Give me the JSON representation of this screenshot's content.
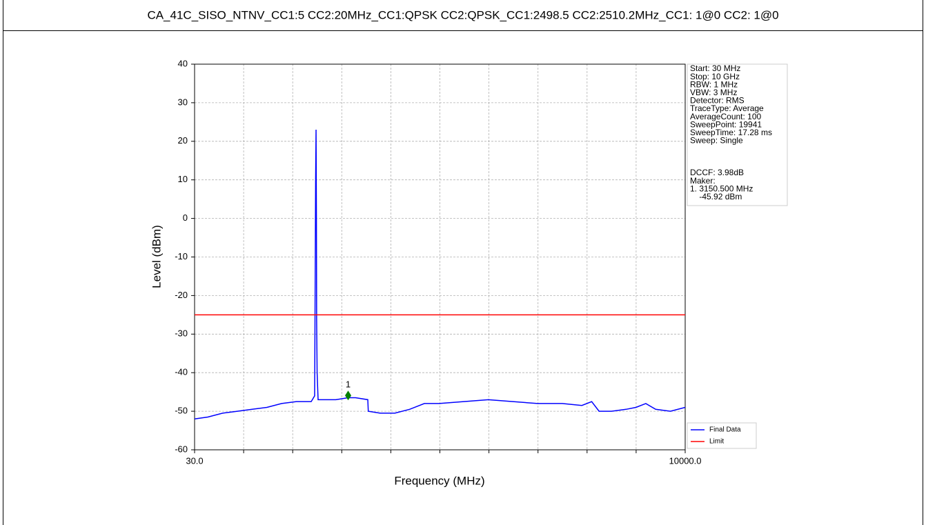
{
  "header": "CA_41C_SISO_NTNV_CC1:5 CC2:20MHz_CC1:QPSK CC2:QPSK_CC1:2498.5 CC2:2510.2MHz_CC1: 1@0 CC2: 1@0",
  "chart_data": {
    "type": "line",
    "xlabel": "Frequency (MHz)",
    "ylabel": "Level (dBm)",
    "xlim": [
      30,
      10000
    ],
    "ylim": [
      -60,
      40
    ],
    "xticks": [
      {
        "value": 30,
        "label": "30.0"
      },
      {
        "value": 10000,
        "label": "10000.0"
      }
    ],
    "x_divisions": 10,
    "yticks": [
      -60,
      -50,
      -40,
      -30,
      -20,
      -10,
      0,
      10,
      20,
      30,
      40
    ],
    "grid": true,
    "legend": "lower right",
    "series": [
      {
        "name": "Final Data",
        "color": "#0000ff",
        "x": [
          30,
          300,
          600,
          900,
          1200,
          1500,
          1800,
          2100,
          2400,
          2470,
          2490,
          2498.5,
          2506,
          2510.2,
          2520,
          2540,
          2700,
          2900,
          3150.5,
          3300,
          3550,
          3560,
          3800,
          4100,
          4400,
          4700,
          5000,
          5500,
          6000,
          6500,
          7000,
          7500,
          7900,
          8100,
          8250,
          8500,
          8800,
          9000,
          9200,
          9400,
          9700,
          10000
        ],
        "values": [
          -52,
          -51.5,
          -50.5,
          -50,
          -49.5,
          -49,
          -48,
          -47.5,
          -47.5,
          -46,
          10,
          23,
          0,
          -26,
          -40,
          -47,
          -47,
          -47,
          -46.5,
          -46.5,
          -47,
          -50,
          -50.5,
          -50.5,
          -49.5,
          -48,
          -48,
          -47.5,
          -47,
          -47.5,
          -48,
          -48,
          -48.5,
          -47.5,
          -50,
          -50,
          -49.5,
          -49,
          -48,
          -49.5,
          -50,
          -49
        ]
      },
      {
        "name": "Limit",
        "color": "#ff0000",
        "x": [
          30,
          10000
        ],
        "values": [
          -25,
          -25
        ]
      }
    ],
    "marker": {
      "label": "1",
      "x": 3150.5,
      "y": -45.92,
      "color": "#008000"
    },
    "info_settings": [
      "Start: 30 MHz",
      "Stop: 10 GHz",
      "RBW: 1 MHz",
      "VBW: 3 MHz",
      "Detector: RMS",
      "TraceType: Average",
      "AverageCount: 100",
      "SweepPoint: 19941",
      "SweepTime: 17.28 ms",
      "Sweep: Single"
    ],
    "info_marker": [
      "DCCF: 3.98dB",
      "Maker:",
      "1. 3150.500 MHz",
      "    -45.92 dBm"
    ]
  }
}
